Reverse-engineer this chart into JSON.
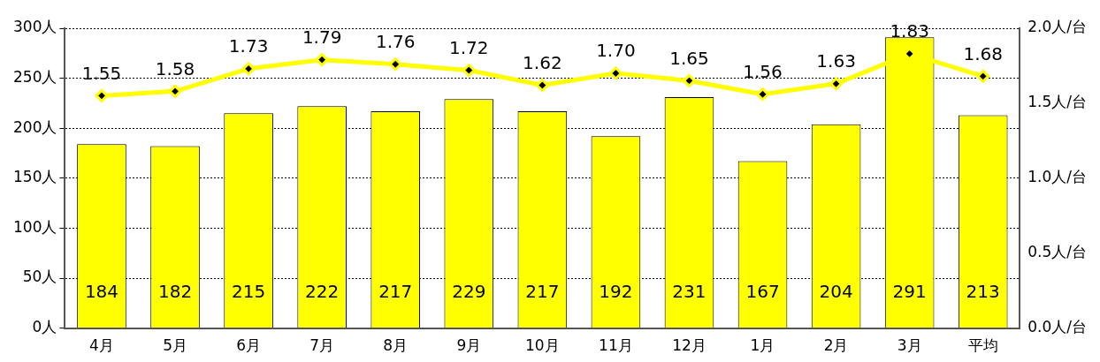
{
  "chart_data": {
    "type": "bar",
    "categories": [
      "4月",
      "5月",
      "6月",
      "7月",
      "8月",
      "9月",
      "10月",
      "11月",
      "12月",
      "1月",
      "2月",
      "3月",
      "平均"
    ],
    "series": [
      {
        "color": "#ffff00",
        "values": [
          184,
          182,
          215,
          222,
          217,
          229,
          217,
          192,
          231,
          167,
          204,
          291,
          213
        ],
        "value_labels": [
          "184",
          "182",
          "215",
          "222",
          "217",
          "229",
          "217",
          "192",
          "231",
          "167",
          "204",
          "291",
          "213"
        ]
      },
      {
        "type": "line",
        "axis": "y2",
        "color": "#ffff00",
        "marker": "diamond",
        "values": [
          1.55,
          1.58,
          1.73,
          1.79,
          1.76,
          1.72,
          1.62,
          1.7,
          1.65,
          1.56,
          1.63,
          1.83,
          1.68
        ],
        "value_labels": [
          "1.55",
          "1.58",
          "1.73",
          "1.79",
          "1.76",
          "1.72",
          "1.62",
          "1.70",
          "1.65",
          "1.56",
          "1.63",
          "1.83",
          "1.68"
        ]
      }
    ],
    "ylim": [
      0,
      300
    ],
    "yticks": [
      {
        "value": 0,
        "label": "0人"
      },
      {
        "value": 50,
        "label": "50人"
      },
      {
        "value": 100,
        "label": "100人"
      },
      {
        "value": 150,
        "label": "150人"
      },
      {
        "value": 200,
        "label": "200人"
      },
      {
        "value": 250,
        "label": "250人"
      },
      {
        "value": 300,
        "label": "300人"
      }
    ],
    "y2lim": [
      0,
      2
    ],
    "y2ticks": [
      {
        "value": 0,
        "label": "0.0人/台"
      },
      {
        "value": 0.5,
        "label": "0.5人/台"
      },
      {
        "value": 1,
        "label": "1.0人/台"
      },
      {
        "value": 1.5,
        "label": "1.5人/台"
      },
      {
        "value": 2,
        "label": "2.0人/台"
      }
    ],
    "grid": "y",
    "legend": false
  }
}
